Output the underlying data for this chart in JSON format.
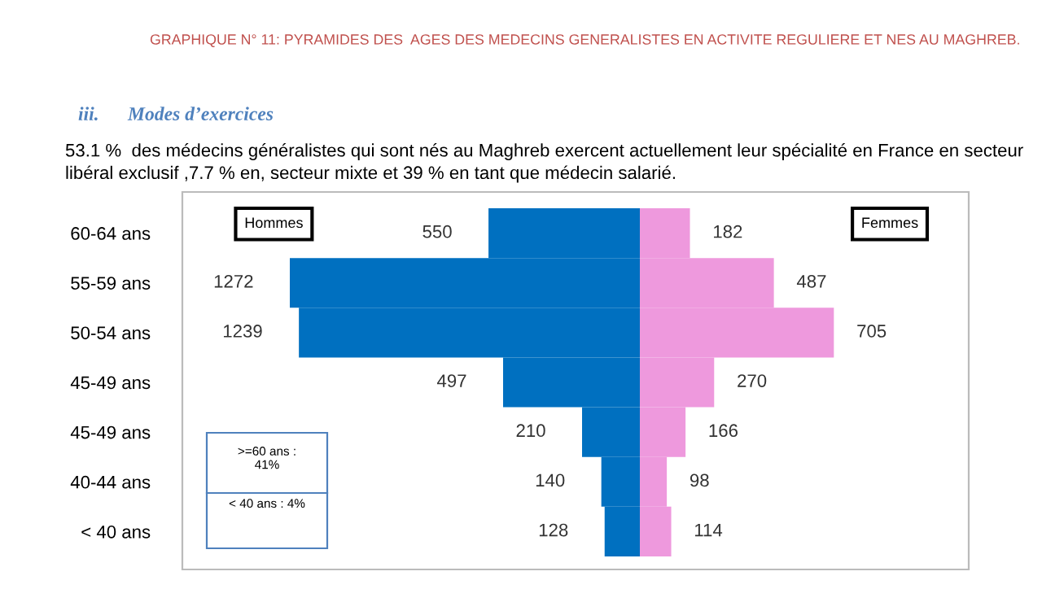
{
  "chart_data": [
    {
      "type": "bar",
      "orientation": "horizontal",
      "title": "GRAPHIQUE N° 11: PYRAMIDES DES  AGES DES MEDECINS GENERALISTES EN ACTIVITE REGULIERE ET NES AU MAGHREB.",
      "categories": [
        "60-64 ans",
        "55-59 ans",
        "50-54 ans",
        "45-49 ans",
        "45-49 ans",
        "40-44 ans",
        "< 40 ans"
      ],
      "series": [
        {
          "name": "Hommes",
          "color": "#0070c0",
          "values": [
            550,
            1272,
            1239,
            497,
            210,
            140,
            128
          ]
        }
      ],
      "data_labels": true,
      "tick_labels": "y",
      "grid": false,
      "legend": false,
      "annotations": [
        "iii.      Modes d’exercices",
        "53.1 %  des médecins généralistes qui sont nés au Maghreb exercent actuellement leur spécialité en France en secteur libéral exclusif ,7.7 % en, secteur mixte et 39 % en tant que médecin salarié.",
        ">=60 ans :\n41%",
        "< 40 ans : 4%"
      ]
    },
    {
      "type": "bar",
      "orientation": "horizontal",
      "categories": [
        null,
        null,
        null,
        null,
        null,
        null,
        null
      ],
      "series": [
        {
          "name": "Femmes",
          "color": "#ee99dd",
          "values": [
            182,
            487,
            705,
            270,
            166,
            98,
            114
          ]
        }
      ],
      "data_labels": true,
      "tick_labels": false,
      "grid": false,
      "legend": false
    }
  ]
}
